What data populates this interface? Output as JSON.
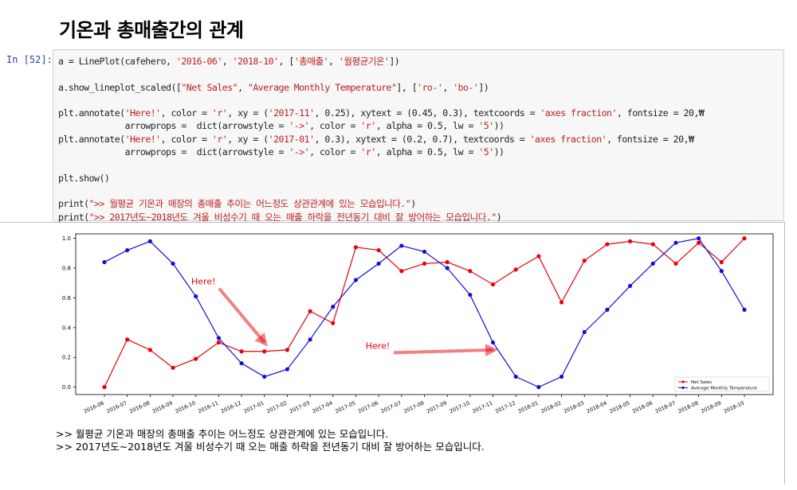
{
  "heading": "기온과 총매출간의 관계",
  "cell": {
    "prompt": "In [52]:",
    "code_lines": [
      "a = LinePlot(cafehero, '2016-06', '2018-10', ['총매출', '월평균기온'])",
      "",
      "a.show_lineplot_scaled([\"Net Sales\", \"Average Monthly Temperature\"], ['ro-', 'bo-'])",
      "",
      "plt.annotate('Here!', color = 'r', xy = ('2017-11', 0.25), xytext = (0.45, 0.3), textcoords = 'axes fraction', fontsize = 20,₩",
      "             arrowprops =  dict(arrowstyle = '->', color = 'r', alpha = 0.5, lw = '5'))",
      "plt.annotate('Here!', color = 'r', xy = ('2017-01', 0.3), xytext = (0.2, 0.7), textcoords = 'axes fraction', fontsize = 20,₩",
      "             arrowprops =  dict(arrowstyle = '->', color = 'r', alpha = 0.5, lw = '5'))",
      "",
      "plt.show()",
      "",
      "print(\">> 월평균 기온과 매장의 총매출 추이는 어느정도 상관관계에 있는 모습입니다.\")",
      "print(\">> 2017년도~2018년도 겨울 비성수기 때 오는 매출 하락을 전년동기 대비 잘 방어하는 모습입니다.\")"
    ]
  },
  "output_lines": [
    ">> 월평균 기온과 매장의 총매출 추이는 어느정도 상관관계에 있는 모습입니다.",
    ">> 2017년도~2018년도 겨울 비성수기 때 오는 매출 하락을 전년동기 대비 잘 방어하는 모습입니다."
  ],
  "chart_data": {
    "type": "line",
    "x": [
      "2016-06",
      "2016-07",
      "2016-08",
      "2016-09",
      "2016-10",
      "2016-11",
      "2016-12",
      "2017-01",
      "2017-02",
      "2017-03",
      "2017-04",
      "2017-05",
      "2017-06",
      "2017-07",
      "2017-08",
      "2017-09",
      "2017-10",
      "2017-11",
      "2017-12",
      "2018-01",
      "2018-02",
      "2018-03",
      "2018-04",
      "2018-05",
      "2018-06",
      "2018-07",
      "2018-08",
      "2018-09",
      "2018-10"
    ],
    "yticks": [
      "0.0",
      "0.2",
      "0.4",
      "0.6",
      "0.8",
      "1.0"
    ],
    "ylim": [
      -0.05,
      1.03
    ],
    "series": [
      {
        "name": "Net Sales",
        "color": "#e8000b",
        "values": [
          0.0,
          0.32,
          0.25,
          0.13,
          0.19,
          0.3,
          0.24,
          0.24,
          0.25,
          0.51,
          0.43,
          0.94,
          0.92,
          0.78,
          0.83,
          0.84,
          0.78,
          0.69,
          0.79,
          0.88,
          0.57,
          0.85,
          0.96,
          0.98,
          0.96,
          0.83,
          0.97,
          0.84,
          1.0
        ]
      },
      {
        "name": "Average Monthly Temperature",
        "color": "#1010d8",
        "values": [
          0.84,
          0.92,
          0.98,
          0.83,
          0.61,
          0.33,
          0.16,
          0.07,
          0.12,
          0.32,
          0.54,
          0.72,
          0.83,
          0.95,
          0.91,
          0.8,
          0.62,
          0.3,
          0.07,
          0.0,
          0.07,
          0.37,
          0.52,
          0.68,
          0.83,
          0.97,
          1.0,
          0.78,
          0.52
        ]
      }
    ],
    "annotations": [
      {
        "text": "Here!",
        "color": "#e8000b",
        "from_frac": [
          0.2,
          0.7
        ],
        "to": [
          "2017-01",
          0.3
        ]
      },
      {
        "text": "Here!",
        "color": "#e8000b",
        "from_frac": [
          0.45,
          0.3
        ],
        "to": [
          "2017-11",
          0.25
        ]
      }
    ],
    "legend_position": "lower right"
  }
}
